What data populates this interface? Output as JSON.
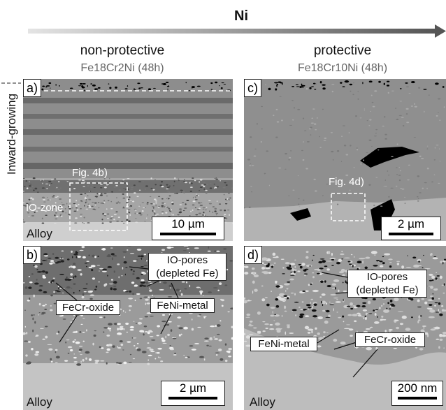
{
  "header": {
    "title": "Ni"
  },
  "side_label": "Inward-growing",
  "columns": [
    {
      "label": "non-protective",
      "sample": "Fe18Cr2Ni (48h)"
    },
    {
      "label": "protective",
      "sample": "Fe18Cr10Ni (48h)"
    }
  ],
  "panels": [
    {
      "label": "a)",
      "inset": "Fig. 4b)",
      "zone": "IO-zone",
      "base": "Alloy",
      "scale_bar": "10 µm"
    },
    {
      "label": "b)",
      "pores": "IO-pores\n(depleted Fe)",
      "oxide": "FeCr-oxide",
      "metal": "FeNi-metal",
      "base": "Alloy",
      "scale_bar": "2 µm"
    },
    {
      "label": "c)",
      "inset": "Fig. 4d)",
      "scale_bar": "2 µm"
    },
    {
      "label": "d)",
      "pores": "IO-pores\n(depleted Fe)",
      "oxide": "FeCr-oxide",
      "metal": "FeNi-metal",
      "base": "Alloy",
      "scale_bar": "200 nm"
    }
  ]
}
